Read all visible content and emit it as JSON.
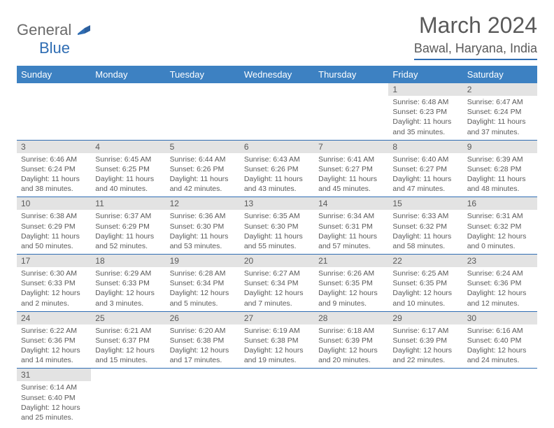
{
  "logo": {
    "general": "General",
    "blue": "Blue"
  },
  "title": "March 2024",
  "location": "Bawal, Haryana, India",
  "colors": {
    "header_bg": "#3d81c2",
    "border": "#2f6db3",
    "daynum_bg": "#e3e3e3",
    "text": "#5a5a5a"
  },
  "weekdays": [
    "Sunday",
    "Monday",
    "Tuesday",
    "Wednesday",
    "Thursday",
    "Friday",
    "Saturday"
  ],
  "weeks": [
    [
      null,
      null,
      null,
      null,
      null,
      {
        "n": "1",
        "sunrise": "Sunrise: 6:48 AM",
        "sunset": "Sunset: 6:23 PM",
        "daylight": "Daylight: 11 hours and 35 minutes."
      },
      {
        "n": "2",
        "sunrise": "Sunrise: 6:47 AM",
        "sunset": "Sunset: 6:24 PM",
        "daylight": "Daylight: 11 hours and 37 minutes."
      }
    ],
    [
      {
        "n": "3",
        "sunrise": "Sunrise: 6:46 AM",
        "sunset": "Sunset: 6:24 PM",
        "daylight": "Daylight: 11 hours and 38 minutes."
      },
      {
        "n": "4",
        "sunrise": "Sunrise: 6:45 AM",
        "sunset": "Sunset: 6:25 PM",
        "daylight": "Daylight: 11 hours and 40 minutes."
      },
      {
        "n": "5",
        "sunrise": "Sunrise: 6:44 AM",
        "sunset": "Sunset: 6:26 PM",
        "daylight": "Daylight: 11 hours and 42 minutes."
      },
      {
        "n": "6",
        "sunrise": "Sunrise: 6:43 AM",
        "sunset": "Sunset: 6:26 PM",
        "daylight": "Daylight: 11 hours and 43 minutes."
      },
      {
        "n": "7",
        "sunrise": "Sunrise: 6:41 AM",
        "sunset": "Sunset: 6:27 PM",
        "daylight": "Daylight: 11 hours and 45 minutes."
      },
      {
        "n": "8",
        "sunrise": "Sunrise: 6:40 AM",
        "sunset": "Sunset: 6:27 PM",
        "daylight": "Daylight: 11 hours and 47 minutes."
      },
      {
        "n": "9",
        "sunrise": "Sunrise: 6:39 AM",
        "sunset": "Sunset: 6:28 PM",
        "daylight": "Daylight: 11 hours and 48 minutes."
      }
    ],
    [
      {
        "n": "10",
        "sunrise": "Sunrise: 6:38 AM",
        "sunset": "Sunset: 6:29 PM",
        "daylight": "Daylight: 11 hours and 50 minutes."
      },
      {
        "n": "11",
        "sunrise": "Sunrise: 6:37 AM",
        "sunset": "Sunset: 6:29 PM",
        "daylight": "Daylight: 11 hours and 52 minutes."
      },
      {
        "n": "12",
        "sunrise": "Sunrise: 6:36 AM",
        "sunset": "Sunset: 6:30 PM",
        "daylight": "Daylight: 11 hours and 53 minutes."
      },
      {
        "n": "13",
        "sunrise": "Sunrise: 6:35 AM",
        "sunset": "Sunset: 6:30 PM",
        "daylight": "Daylight: 11 hours and 55 minutes."
      },
      {
        "n": "14",
        "sunrise": "Sunrise: 6:34 AM",
        "sunset": "Sunset: 6:31 PM",
        "daylight": "Daylight: 11 hours and 57 minutes."
      },
      {
        "n": "15",
        "sunrise": "Sunrise: 6:33 AM",
        "sunset": "Sunset: 6:32 PM",
        "daylight": "Daylight: 11 hours and 58 minutes."
      },
      {
        "n": "16",
        "sunrise": "Sunrise: 6:31 AM",
        "sunset": "Sunset: 6:32 PM",
        "daylight": "Daylight: 12 hours and 0 minutes."
      }
    ],
    [
      {
        "n": "17",
        "sunrise": "Sunrise: 6:30 AM",
        "sunset": "Sunset: 6:33 PM",
        "daylight": "Daylight: 12 hours and 2 minutes."
      },
      {
        "n": "18",
        "sunrise": "Sunrise: 6:29 AM",
        "sunset": "Sunset: 6:33 PM",
        "daylight": "Daylight: 12 hours and 3 minutes."
      },
      {
        "n": "19",
        "sunrise": "Sunrise: 6:28 AM",
        "sunset": "Sunset: 6:34 PM",
        "daylight": "Daylight: 12 hours and 5 minutes."
      },
      {
        "n": "20",
        "sunrise": "Sunrise: 6:27 AM",
        "sunset": "Sunset: 6:34 PM",
        "daylight": "Daylight: 12 hours and 7 minutes."
      },
      {
        "n": "21",
        "sunrise": "Sunrise: 6:26 AM",
        "sunset": "Sunset: 6:35 PM",
        "daylight": "Daylight: 12 hours and 9 minutes."
      },
      {
        "n": "22",
        "sunrise": "Sunrise: 6:25 AM",
        "sunset": "Sunset: 6:35 PM",
        "daylight": "Daylight: 12 hours and 10 minutes."
      },
      {
        "n": "23",
        "sunrise": "Sunrise: 6:24 AM",
        "sunset": "Sunset: 6:36 PM",
        "daylight": "Daylight: 12 hours and 12 minutes."
      }
    ],
    [
      {
        "n": "24",
        "sunrise": "Sunrise: 6:22 AM",
        "sunset": "Sunset: 6:36 PM",
        "daylight": "Daylight: 12 hours and 14 minutes."
      },
      {
        "n": "25",
        "sunrise": "Sunrise: 6:21 AM",
        "sunset": "Sunset: 6:37 PM",
        "daylight": "Daylight: 12 hours and 15 minutes."
      },
      {
        "n": "26",
        "sunrise": "Sunrise: 6:20 AM",
        "sunset": "Sunset: 6:38 PM",
        "daylight": "Daylight: 12 hours and 17 minutes."
      },
      {
        "n": "27",
        "sunrise": "Sunrise: 6:19 AM",
        "sunset": "Sunset: 6:38 PM",
        "daylight": "Daylight: 12 hours and 19 minutes."
      },
      {
        "n": "28",
        "sunrise": "Sunrise: 6:18 AM",
        "sunset": "Sunset: 6:39 PM",
        "daylight": "Daylight: 12 hours and 20 minutes."
      },
      {
        "n": "29",
        "sunrise": "Sunrise: 6:17 AM",
        "sunset": "Sunset: 6:39 PM",
        "daylight": "Daylight: 12 hours and 22 minutes."
      },
      {
        "n": "30",
        "sunrise": "Sunrise: 6:16 AM",
        "sunset": "Sunset: 6:40 PM",
        "daylight": "Daylight: 12 hours and 24 minutes."
      }
    ],
    [
      {
        "n": "31",
        "sunrise": "Sunrise: 6:14 AM",
        "sunset": "Sunset: 6:40 PM",
        "daylight": "Daylight: 12 hours and 25 minutes."
      },
      null,
      null,
      null,
      null,
      null,
      null
    ]
  ]
}
